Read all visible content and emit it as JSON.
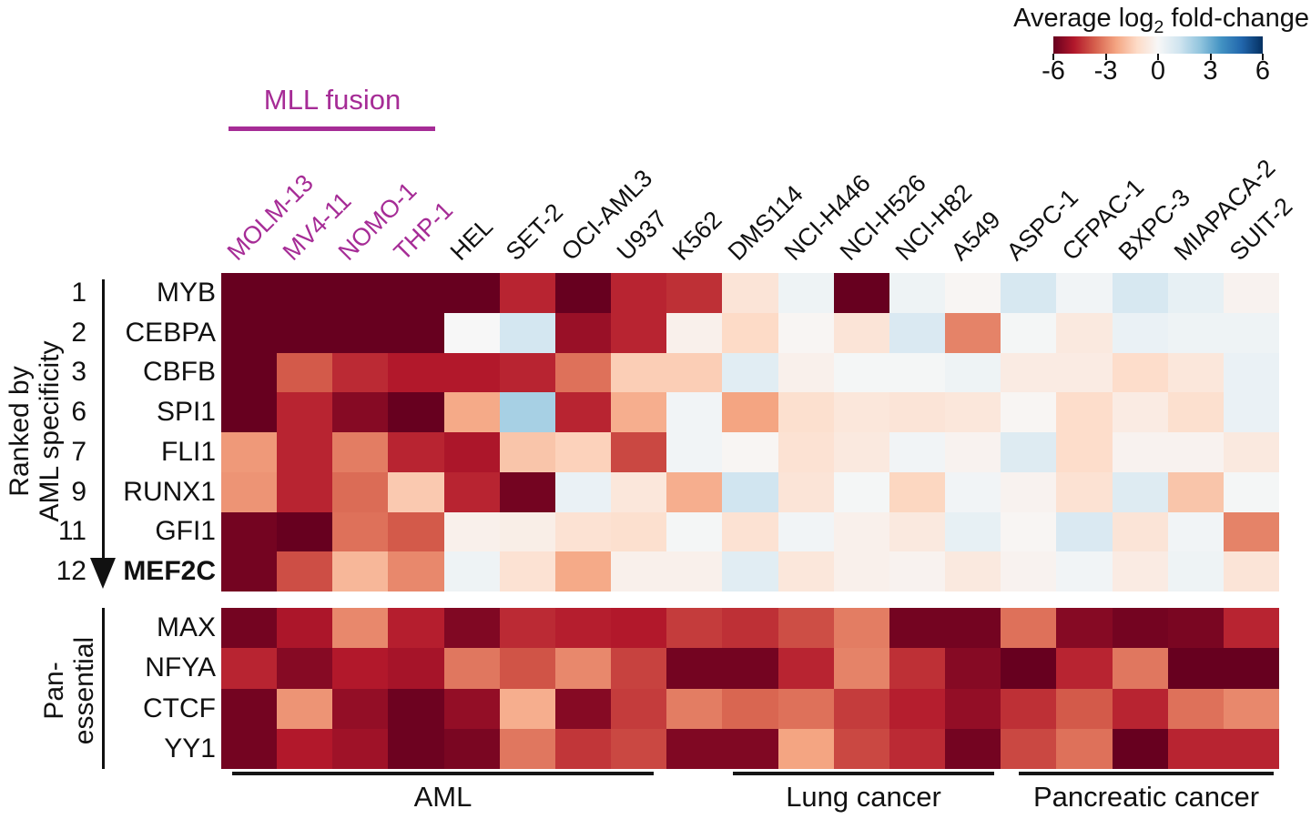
{
  "colorbar": {
    "title_prefix": "Average log",
    "title_sub": "2",
    "title_suffix": " fold-change",
    "tick_labels": [
      "-6",
      "-3",
      "0",
      "3",
      "6"
    ],
    "colormap_stops": [
      "#67001f",
      "#b2182b",
      "#d6604d",
      "#f4a582",
      "#fddbc7",
      "#f7f7f7",
      "#d1e5f0",
      "#92c5de",
      "#4393c3",
      "#2166ac",
      "#053061"
    ]
  },
  "mll_fusion": {
    "label": "MLL fusion",
    "color": "#a62c96",
    "columns": [
      "MOLM-13",
      "MV4-11",
      "NOMO-1",
      "THP-1"
    ]
  },
  "left_axis_label": {
    "line1": "Ranked by",
    "line2": "AML specificity"
  },
  "pan_essential_label": {
    "line1": "Pan-",
    "line2": "essential"
  },
  "chart_data": {
    "type": "heatmap",
    "title": "Average log2 fold-change",
    "colormap": "RdBu",
    "vmin": -6,
    "vmax": 6,
    "legend_position": "top-right",
    "columns": [
      "MOLM-13",
      "MV4-11",
      "NOMO-1",
      "THP-1",
      "HEL",
      "SET-2",
      "OCI-AML3",
      "U937",
      "K562",
      "DMS114",
      "NCI-H446",
      "NCI-H526",
      "NCI-H82",
      "A549",
      "ASPC-1",
      "CFPAC-1",
      "BXPC-3",
      "MIAPACA-2",
      "SUIT-2"
    ],
    "mll_fusion_columns": [
      "MOLM-13",
      "MV4-11",
      "NOMO-1",
      "THP-1"
    ],
    "row_blocks": [
      {
        "name": "aml-specific",
        "axis_label": "Ranked by AML specificity",
        "rows": [
          {
            "rank": "1",
            "gene": "MYB",
            "bold": false,
            "values": [
              -6,
              -6,
              -6,
              -6,
              -6,
              -4.6,
              -6,
              -4.6,
              -4.4,
              -0.8,
              0.3,
              -6,
              0.3,
              -0.1,
              1.0,
              0.2,
              1.0,
              0.5,
              -0.2
            ]
          },
          {
            "rank": "2",
            "gene": "CEBPA",
            "bold": false,
            "values": [
              -6,
              -6,
              -6,
              -6,
              0,
              1.1,
              -5.2,
              -4.6,
              -0.3,
              -1.2,
              -0.1,
              -0.8,
              0.9,
              -3.0,
              0.1,
              -0.6,
              0.4,
              0.3,
              0.3
            ]
          },
          {
            "rank": "3",
            "gene": "CBFB",
            "bold": false,
            "values": [
              -6,
              -3.7,
              -4.5,
              -4.8,
              -4.8,
              -4.6,
              -3.3,
              -1.5,
              -1.5,
              0.7,
              -0.3,
              0.1,
              0.1,
              0.3,
              -0.5,
              -0.5,
              -1.1,
              -0.7,
              0.4
            ]
          },
          {
            "rank": "6",
            "gene": "SPI1",
            "bold": false,
            "values": [
              -6,
              -4.6,
              -5.5,
              -6,
              -2.3,
              2.0,
              -4.6,
              -2.2,
              0.2,
              -2.4,
              -1.0,
              -0.7,
              -0.8,
              -0.7,
              -0.1,
              -1.1,
              -0.5,
              -1.0,
              0.4
            ]
          },
          {
            "rank": "7",
            "gene": "FLI1",
            "bold": false,
            "values": [
              -2.6,
              -4.6,
              -3.1,
              -4.6,
              -4.9,
              -1.7,
              -1.4,
              -4.0,
              0.2,
              -0.1,
              -0.9,
              -0.6,
              0.2,
              -0.2,
              0.8,
              -1.1,
              -0.2,
              -0.2,
              -0.6
            ]
          },
          {
            "rank": "9",
            "gene": "RUNX1",
            "bold": false,
            "values": [
              -2.7,
              -4.6,
              -3.4,
              -1.6,
              -4.6,
              -5.8,
              0.4,
              -0.7,
              -2.2,
              1.2,
              -0.8,
              0.1,
              -1.3,
              0.2,
              -0.2,
              -0.9,
              0.8,
              -1.7,
              0.1
            ]
          },
          {
            "rank": "11",
            "gene": "GFI1",
            "bold": false,
            "values": [
              -5.8,
              -6,
              -3.3,
              -3.7,
              -0.3,
              -0.4,
              -0.9,
              -1.0,
              0.1,
              -0.9,
              0.2,
              -0.3,
              -0.6,
              0.5,
              -0.1,
              0.9,
              -0.8,
              0.2,
              -3.0
            ]
          },
          {
            "rank": "12",
            "gene": "MEF2C",
            "bold": true,
            "values": [
              -5.8,
              -3.9,
              -2.0,
              -2.9,
              0.3,
              -0.9,
              -2.3,
              -0.3,
              -0.3,
              0.7,
              -0.7,
              -0.3,
              -0.2,
              -0.6,
              -0.2,
              0.2,
              -0.5,
              0.3,
              -0.8
            ]
          }
        ]
      },
      {
        "name": "pan-essential",
        "axis_label": "Pan-essential",
        "rows": [
          {
            "gene": "MAX",
            "bold": false,
            "values": [
              -5.8,
              -4.9,
              -2.9,
              -4.7,
              -5.6,
              -4.5,
              -4.7,
              -4.8,
              -4.2,
              -4.4,
              -3.9,
              -3.1,
              -5.8,
              -5.8,
              -3.3,
              -5.5,
              -5.8,
              -5.7,
              -4.6
            ]
          },
          {
            "gene": "NFYA",
            "bold": false,
            "values": [
              -4.6,
              -5.5,
              -4.8,
              -5.0,
              -3.2,
              -3.8,
              -2.9,
              -4.1,
              -5.8,
              -5.8,
              -4.6,
              -3.0,
              -4.4,
              -5.5,
              -6,
              -4.6,
              -3.2,
              -6,
              -6
            ]
          },
          {
            "gene": "CTCF",
            "bold": false,
            "values": [
              -5.8,
              -2.7,
              -5.3,
              -5.9,
              -5.3,
              -2.2,
              -5.5,
              -4.2,
              -3.1,
              -3.5,
              -3.3,
              -4.2,
              -4.7,
              -5.3,
              -4.4,
              -3.7,
              -4.6,
              -3.3,
              -2.9
            ]
          },
          {
            "gene": "YY1",
            "bold": false,
            "values": [
              -5.8,
              -4.8,
              -5.1,
              -5.9,
              -5.7,
              -3.2,
              -4.3,
              -4.0,
              -5.6,
              -5.6,
              -2.4,
              -4.0,
              -4.5,
              -5.8,
              -4.0,
              -3.3,
              -6,
              -4.6,
              -4.6
            ]
          }
        ]
      }
    ],
    "column_groups": [
      {
        "label": "AML",
        "start": 0,
        "end": 8
      },
      {
        "label": "Lung cancer",
        "start": 9,
        "end": 13
      },
      {
        "label": "Pancreatic cancer",
        "start": 14,
        "end": 18
      }
    ]
  }
}
